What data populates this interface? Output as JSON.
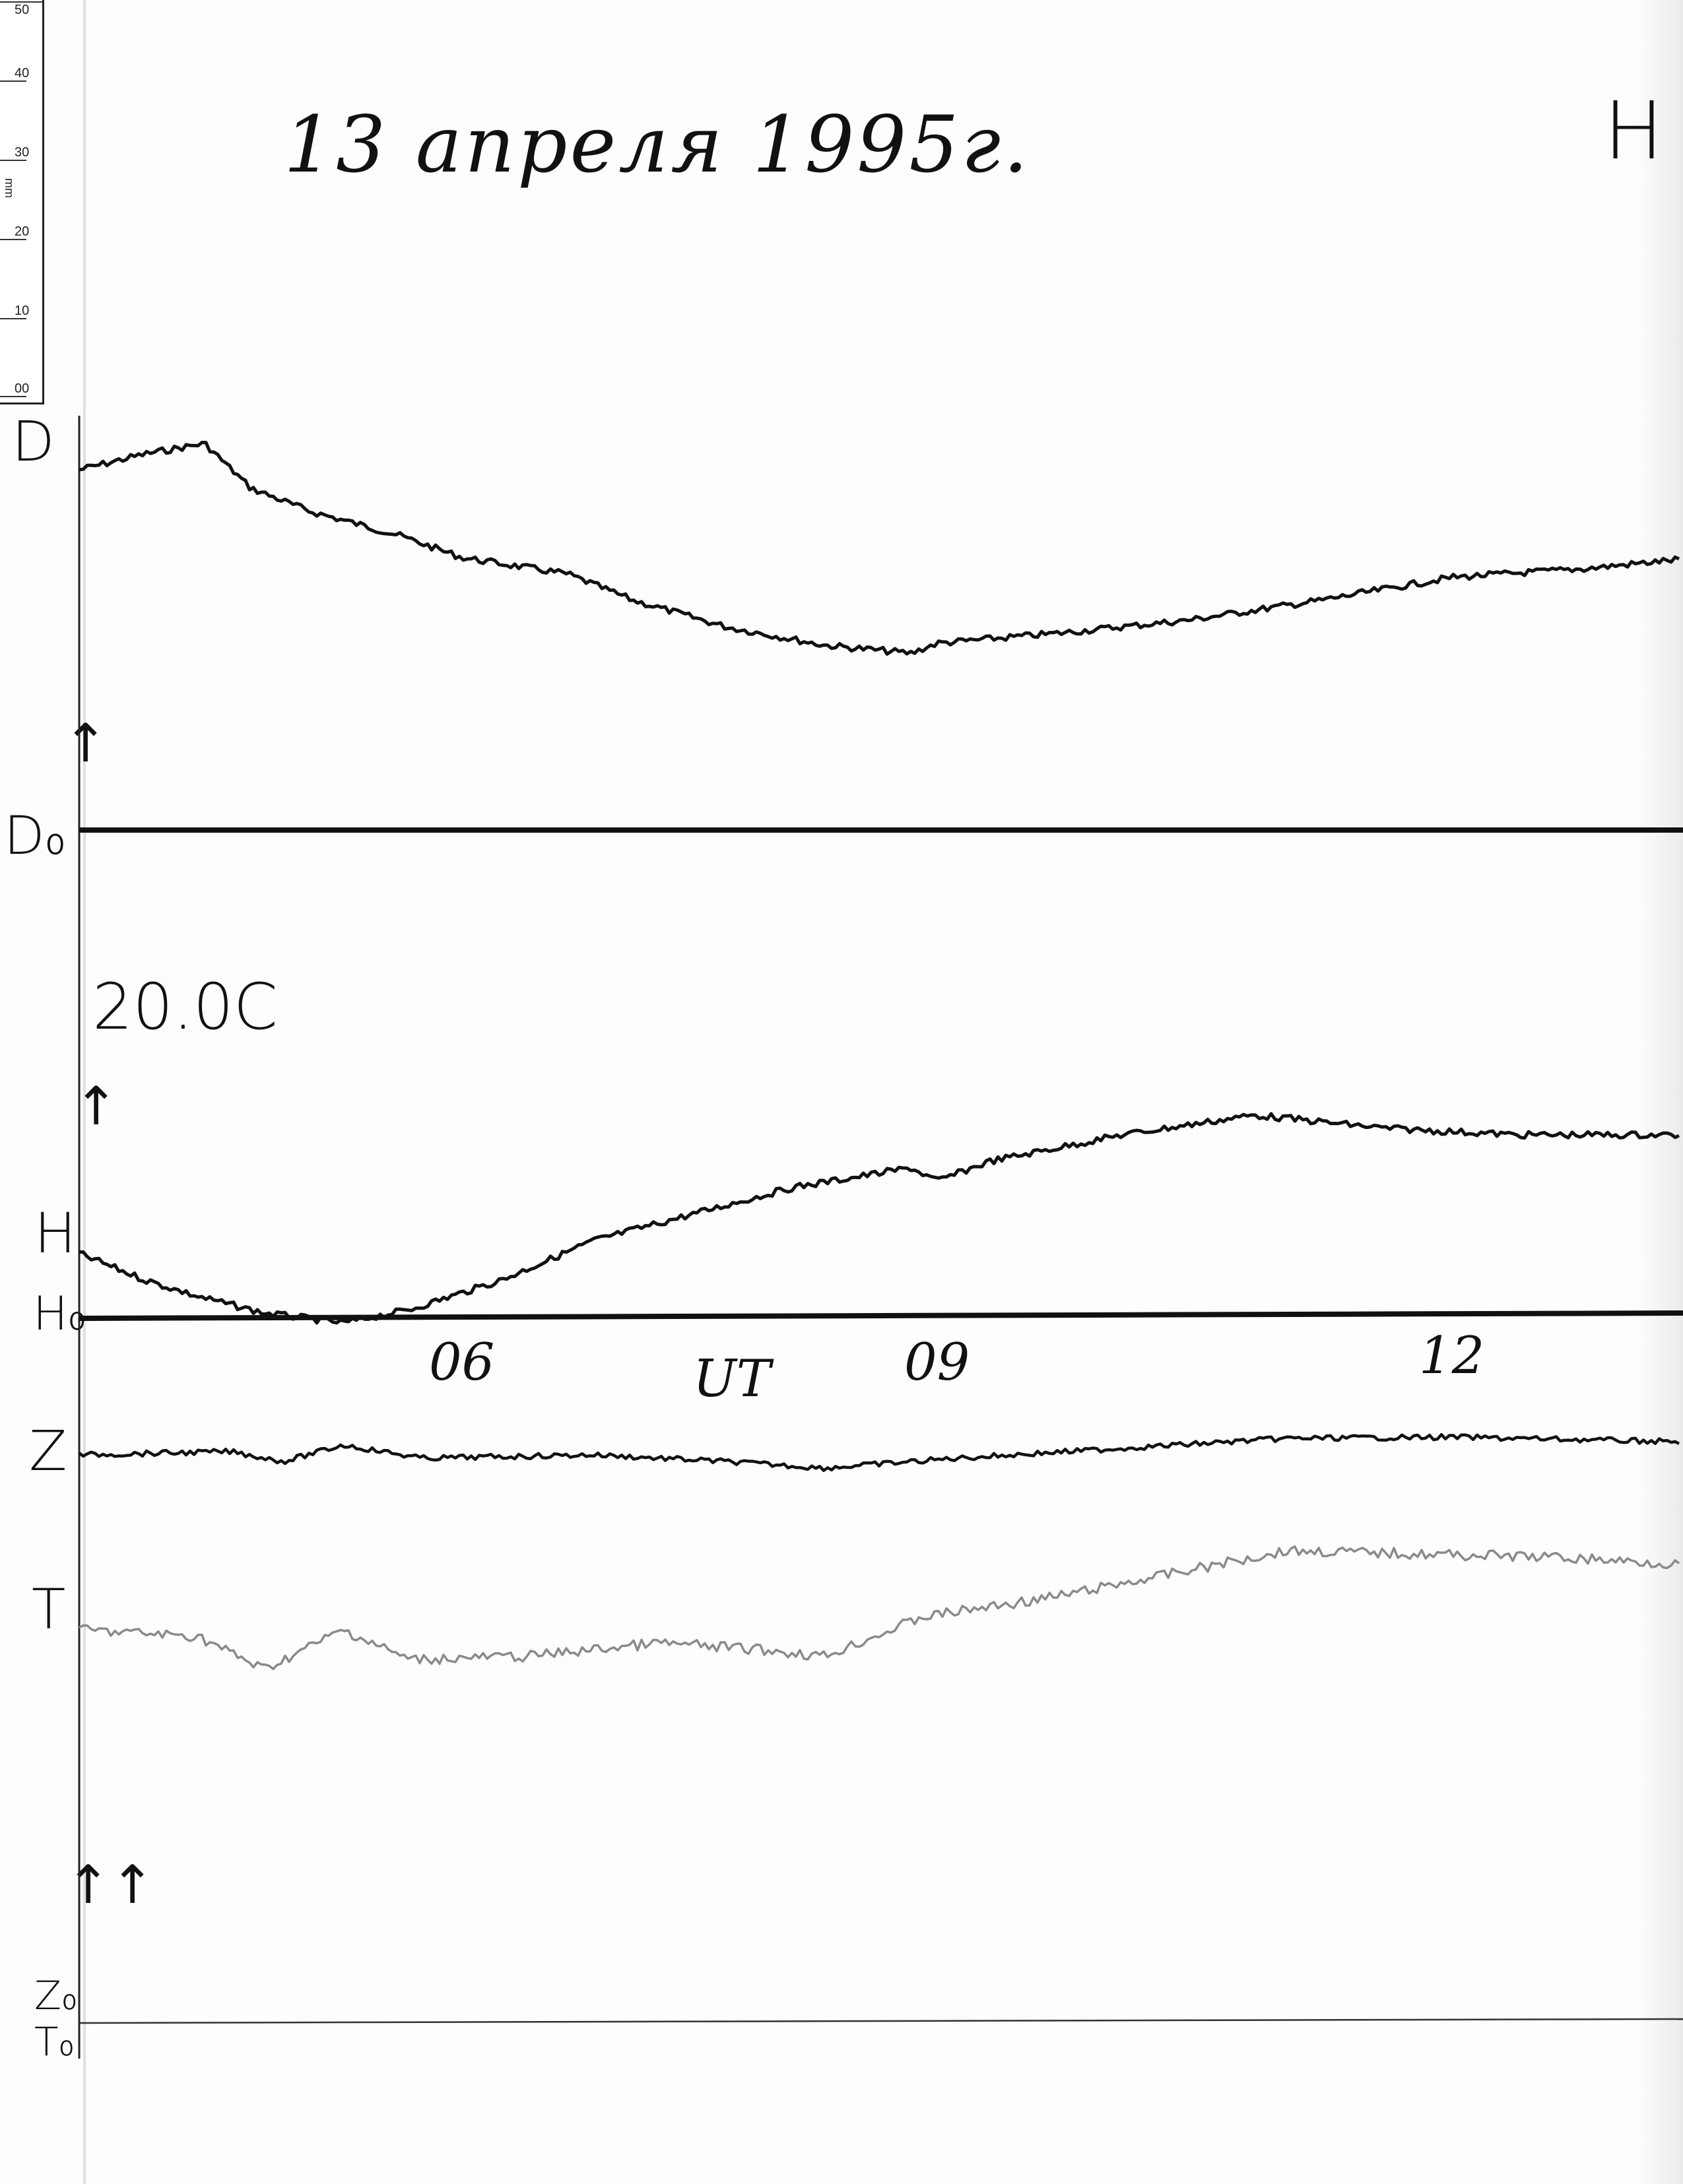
{
  "ruler": {
    "labels": [
      "50",
      "40",
      "30",
      "20",
      "10",
      "00"
    ],
    "unit": "mm"
  },
  "header": {
    "title": "13 апреля 1995г.",
    "corner_label": "H"
  },
  "temperature_label": "20.0C",
  "traces": {
    "d_label": "D",
    "d0_label": "D₀",
    "h_label": "H",
    "h0_label": "H₀",
    "z_label": "Z",
    "t_label": "T",
    "z0_label": "Z₀",
    "t0_label": "T₀"
  },
  "time_axis": {
    "unit_label": "UT",
    "ticks": [
      "06",
      "09",
      "12"
    ]
  },
  "icons": {
    "up_arrow": "↑",
    "double_up_arrow": "↑↑"
  },
  "colors": {
    "ink": "#111111",
    "t_trace": "#8a8a8a"
  }
}
